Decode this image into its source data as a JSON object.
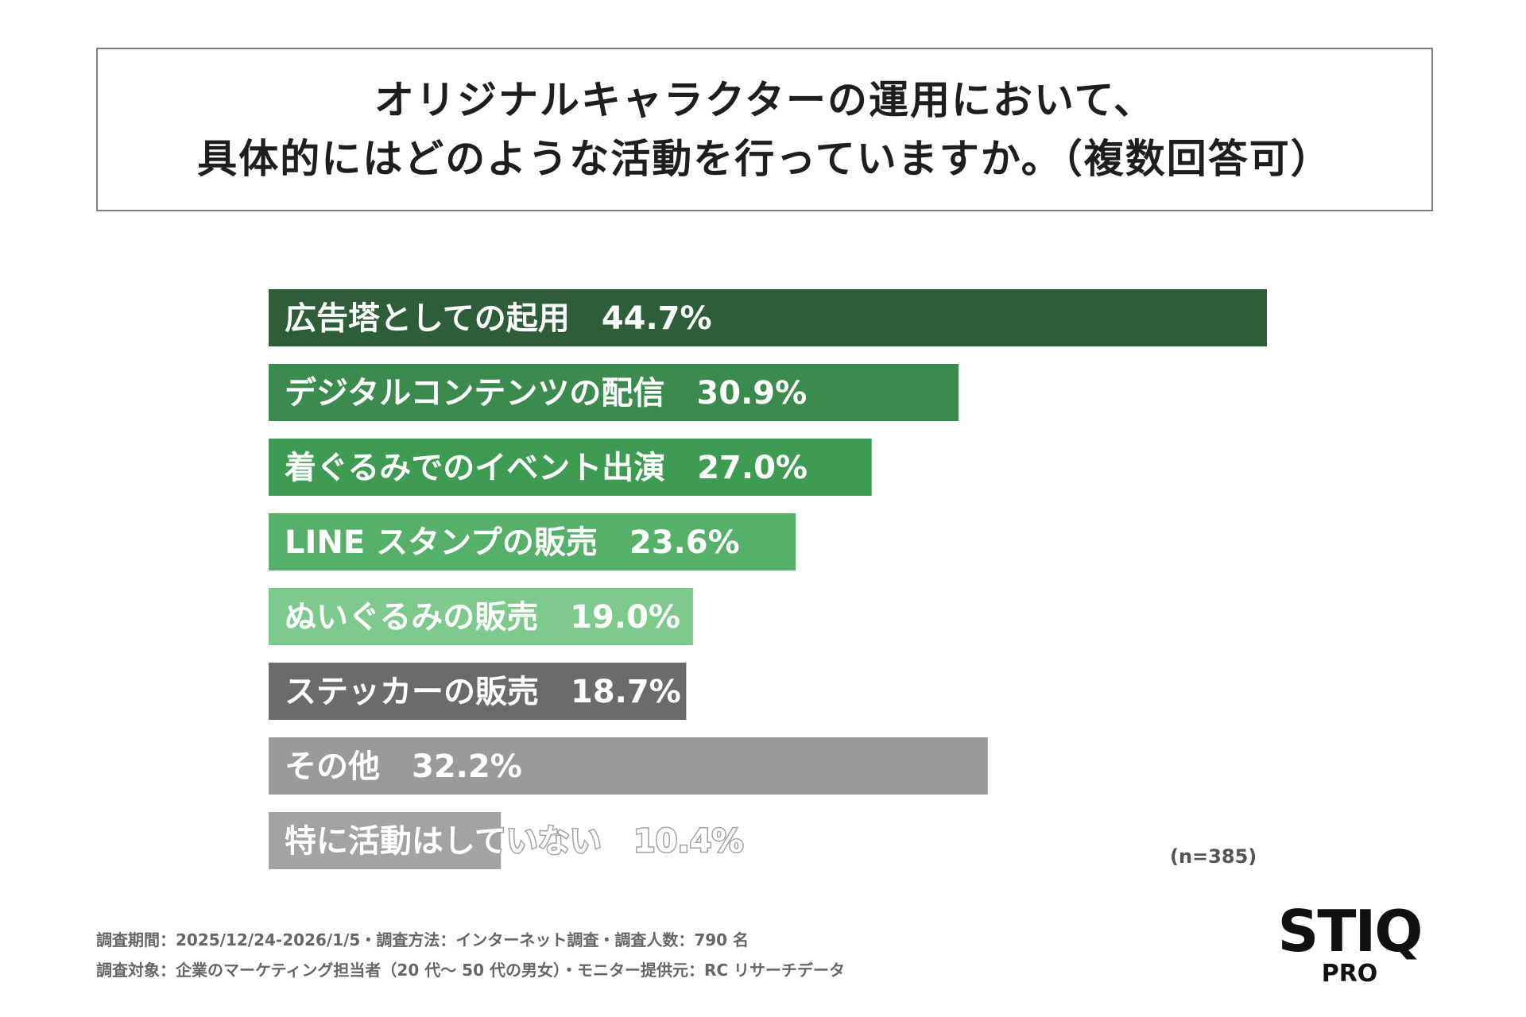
{
  "title": {
    "line1": "オリジナルキャラクターの運用において、",
    "line2": "具体的にはどのような活動を行っていますか。（複数回答可）"
  },
  "chart_data": {
    "type": "bar",
    "orientation": "horizontal",
    "categories": [
      "広告塔としての起用",
      "デジタルコンテンツの配信",
      "着ぐるみでのイベント出演",
      "LINE スタンプの販売",
      "ぬいぐるみの販売",
      "ステッカーの販売",
      "その他",
      "特に活動はしていない"
    ],
    "values": [
      44.7,
      30.9,
      27.0,
      23.6,
      19.0,
      18.7,
      32.2,
      10.4
    ],
    "value_labels": [
      "44.7%",
      "30.9%",
      "27.0%",
      "23.6%",
      "19.0%",
      "18.7%",
      "32.2%",
      "10.4%"
    ],
    "colors": [
      "#2d5e39",
      "#3b8b4e",
      "#3e9c52",
      "#56b069",
      "#7ec98c",
      "#6b6b6b",
      "#9a9a9a",
      "#a3a3a3"
    ],
    "unit": "%",
    "xlim": [
      0,
      44.7
    ],
    "grid": false,
    "legend": "none",
    "note": "(n=385)"
  },
  "footer": {
    "line1": "調査期間：2025/12/24-2026/1/5・調査方法：インターネット調査・調査人数：790 名",
    "line2": "調査対象：企業のマーケティング担当者（20 代〜 50 代の男女）・モニター提供元：RC リサーチデータ"
  },
  "logo": {
    "main": "STIQ",
    "sub": "PRO"
  }
}
